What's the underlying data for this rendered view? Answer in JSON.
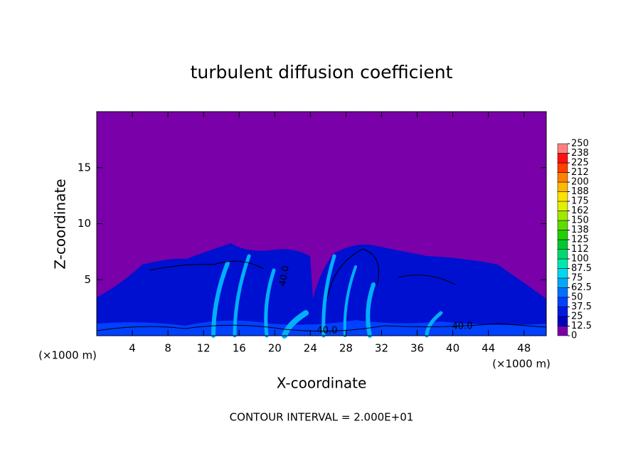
{
  "chart_data": {
    "type": "contour",
    "title": "turbulent diffusion coefficient",
    "x_label": "X-coordinate",
    "y_label": "Z-coordinate",
    "x_unit": "(×1000 m)",
    "y_unit": "(×1000 m)",
    "footer": "CONTOUR INTERVAL = 2.000E+01",
    "xlim": [
      0,
      50.5
    ],
    "xticks": [
      4,
      8,
      12,
      16,
      20,
      24,
      28,
      32,
      36,
      40,
      44,
      48
    ],
    "ylim": [
      0,
      20
    ],
    "yticks": [
      5,
      10,
      15
    ],
    "background_color": "#7a00aa",
    "contour_labels": [
      "40.0",
      "40.0",
      "40.0"
    ],
    "colorbar": {
      "ticks": [
        0,
        12.5,
        25,
        37.5,
        50,
        62.5,
        75,
        87.5,
        100,
        {
          "value": 112.5,
          "label": "112"
        },
        125,
        {
          "value": 137.5,
          "label": "138"
        },
        150,
        {
          "value": 162.5,
          "label": "162"
        },
        175,
        {
          "value": 187.5,
          "label": "188"
        },
        200,
        {
          "value": 212.5,
          "label": "212"
        },
        225,
        {
          "value": 237.5,
          "label": "238"
        },
        250
      ],
      "colors": [
        "#7a00aa",
        "#0000c0",
        "#0018e0",
        "#0040ff",
        "#0070ff",
        "#00a8ff",
        "#00d8f0",
        "#00e8b0",
        "#00d870",
        "#00c830",
        "#20d000",
        "#60dc00",
        "#a0e800",
        "#e0f000",
        "#ffe000",
        "#ffb800",
        "#ff8000",
        "#ff4000",
        "#ff1010",
        "#ff8080"
      ]
    }
  }
}
